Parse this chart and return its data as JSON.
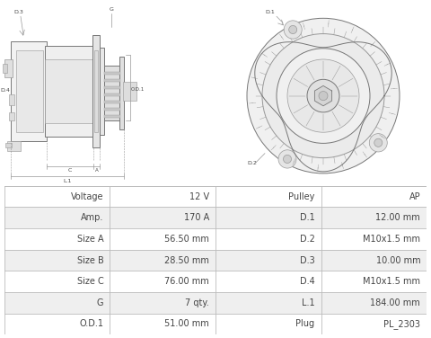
{
  "table_data": [
    [
      "Voltage",
      "12 V",
      "Pulley",
      "AP"
    ],
    [
      "Amp.",
      "170 A",
      "D.1",
      "12.00 mm"
    ],
    [
      "Size A",
      "56.50 mm",
      "D.2",
      "M10x1.5 mm"
    ],
    [
      "Size B",
      "28.50 mm",
      "D.3",
      "10.00 mm"
    ],
    [
      "Size C",
      "76.00 mm",
      "D.4",
      "M10x1.5 mm"
    ],
    [
      "G",
      "7 qty.",
      "L.1",
      "184.00 mm"
    ],
    [
      "O.D.1",
      "51.00 mm",
      "Plug",
      "PL_2303"
    ]
  ],
  "bg_color": "#ffffff",
  "table_row_bg1": "#ffffff",
  "table_row_bg2": "#efefef",
  "table_line_color": "#bbbbbb",
  "text_color": "#444444",
  "lc": "#999999",
  "lc_dark": "#777777"
}
